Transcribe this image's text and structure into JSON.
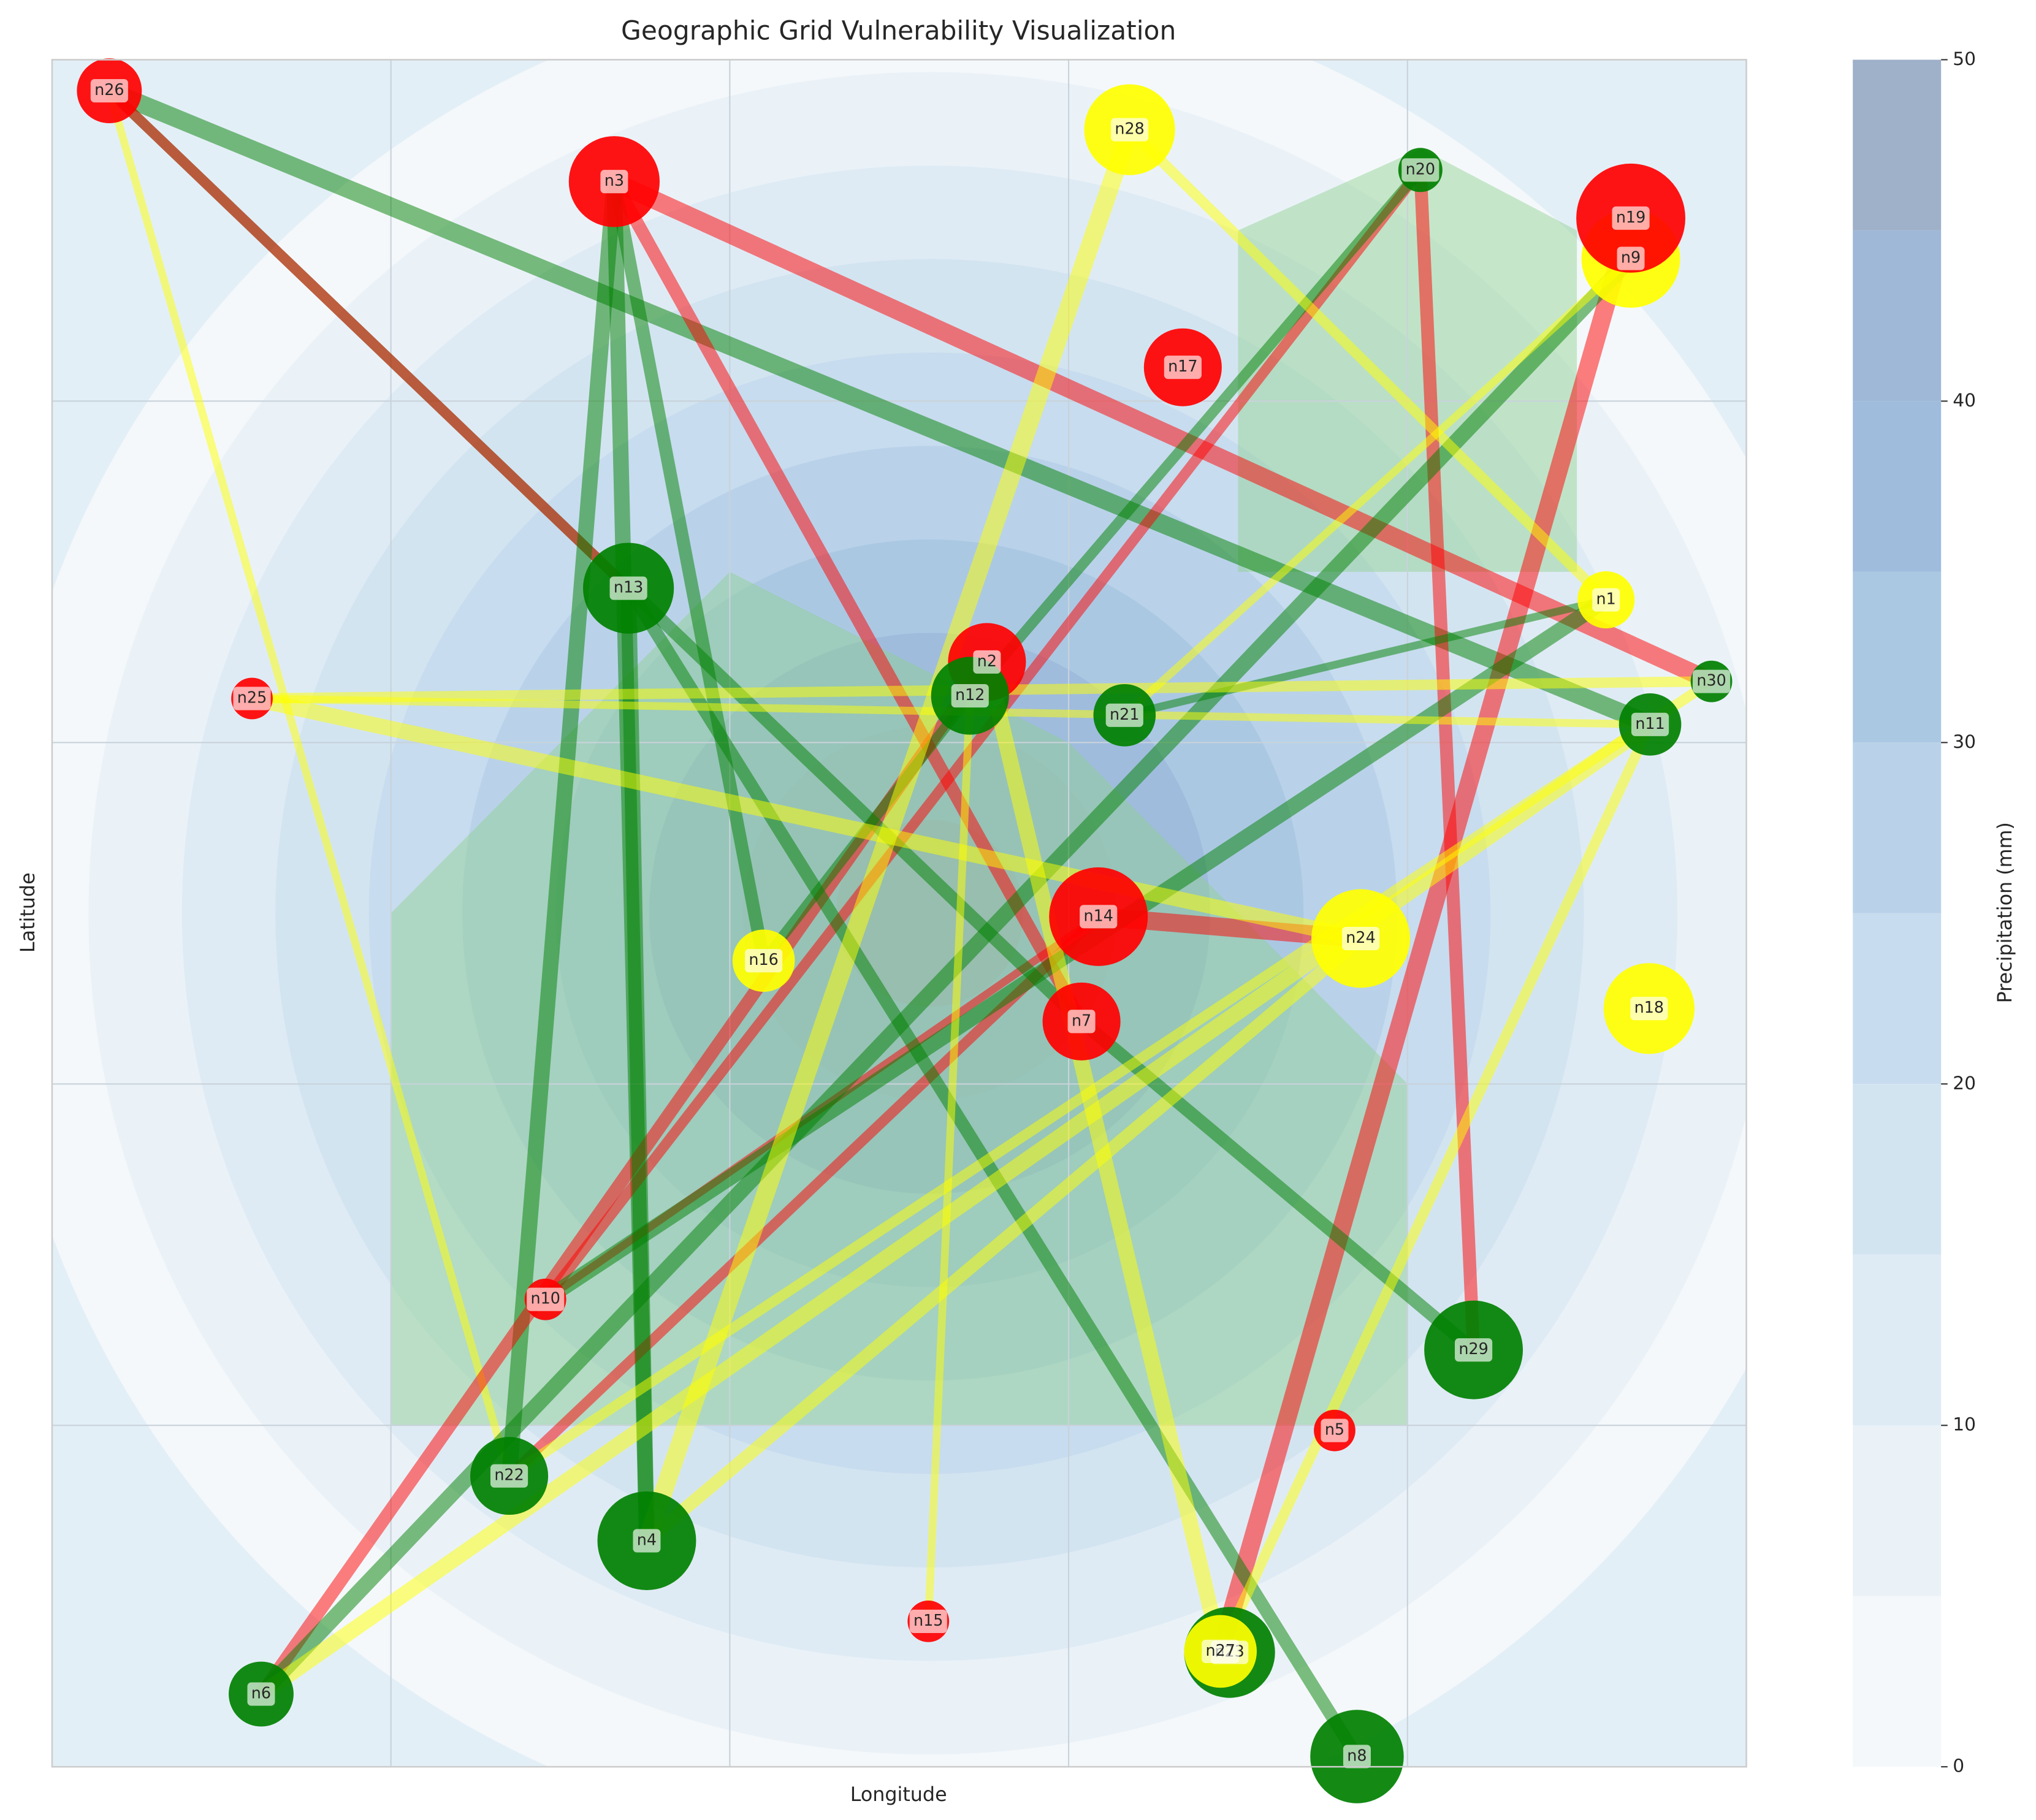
{
  "chart_data": {
    "type": "network",
    "title": "Geographic Grid Vulnerability Visualization",
    "x_label": "Longitude",
    "y_label": "Latitude",
    "xlim": [
      0,
      5
    ],
    "ylim": [
      0,
      5
    ],
    "xticks": [
      1,
      2,
      3,
      4
    ],
    "yticks": [
      1,
      2,
      3,
      4
    ],
    "grid": true,
    "contour_center": [
      2.59,
      2.5
    ],
    "colorbar": {
      "label": "Precipitation (mm)",
      "lim": [
        0,
        50
      ],
      "ticks": [
        0,
        10,
        20,
        30,
        40,
        50
      ],
      "levels": [
        0,
        5,
        10,
        15,
        20,
        25,
        30,
        35,
        40,
        45
      ],
      "colors": [
        "#f4f8fb",
        "#eaf2f8",
        "#dfebf4",
        "#d3e4f1",
        "#c7dcee",
        "#b9d2e9",
        "#abc8e3",
        "#9fbcdd",
        "#9fb8d8",
        "#9fb0c9"
      ]
    },
    "regions": [
      {
        "x": [
          1,
          2,
          3,
          4,
          4,
          1
        ],
        "y": [
          2.5,
          3.5,
          3,
          2,
          1,
          1
        ],
        "color": "#8fd18f"
      },
      {
        "x": [
          3.5,
          4.04,
          4.5,
          4.5,
          3.5
        ],
        "y": [
          4.5,
          4.74,
          4.5,
          3.5,
          3.5
        ],
        "color": "#8fd18f"
      }
    ],
    "nodes": {
      "names": [
        "n1",
        "n2",
        "n3",
        "n4",
        "n5",
        "n6",
        "n7",
        "n8",
        "n9",
        "n10",
        "n11",
        "n12",
        "n13",
        "n14",
        "n15",
        "n16",
        "n17",
        "n18",
        "n19",
        "n20",
        "n21",
        "n22",
        "n23",
        "n24",
        "n25",
        "n26",
        "n27",
        "n28",
        "n29",
        "n30"
      ],
      "x": [
        4.586,
        2.759,
        1.659,
        1.755,
        3.785,
        0.617,
        3.038,
        3.851,
        4.659,
        1.456,
        4.716,
        2.709,
        1.701,
        3.088,
        2.586,
        2.1,
        3.337,
        4.713,
        4.659,
        4.038,
        3.165,
        1.349,
        3.475,
        3.862,
        0.59,
        0.169,
        3.448,
        3.18,
        4.195,
        4.897
      ],
      "y": [
        3.418,
        3.236,
        4.643,
        0.662,
        0.985,
        0.213,
        2.183,
        0.03,
        4.418,
        1.369,
        3.053,
        3.137,
        3.452,
        2.49,
        0.426,
        2.361,
        4.099,
        2.221,
        4.536,
        4.677,
        3.08,
        0.852,
        0.335,
        2.426,
        3.129,
        4.909,
        0.338,
        4.795,
        1.221,
        3.179
      ],
      "sizes": [
        2.2,
        3.0,
        3.5,
        3.8,
        1.6,
        2.5,
        3.0,
        3.6,
        3.8,
        1.6,
        2.4,
        3.0,
        3.5,
        3.8,
        1.6,
        2.4,
        3.0,
        3.5,
        4.2,
        1.7,
        2.4,
        3.0,
        3.5,
        3.8,
        1.6,
        2.5,
        2.8,
        3.5,
        3.8,
        1.6
      ],
      "colors": [
        "#ffff00",
        "#ff0000",
        "#ff0000",
        "#008000",
        "#ff0000",
        "#008000",
        "#ff0000",
        "#008000",
        "#ffff00",
        "#ff0000",
        "#008000",
        "#008000",
        "#008000",
        "#ff0000",
        "#ff0000",
        "#ffff00",
        "#ff0000",
        "#ffff00",
        "#ff0000",
        "#008000",
        "#008000",
        "#008000",
        "#008000",
        "#ffff00",
        "#ff0000",
        "#ff0000",
        "#ffff00",
        "#ffff00",
        "#008000",
        "#008000"
      ]
    },
    "edges": {
      "source": [
        "n26",
        "n26",
        "n26",
        "n26",
        "n3",
        "n3",
        "n3",
        "n3",
        "n3",
        "n20",
        "n20",
        "n20",
        "n19",
        "n14",
        "n6",
        "n22",
        "n10",
        "n13",
        "n13",
        "n13",
        "n7",
        "n9",
        "n1",
        "n21",
        "n16",
        "n28",
        "n28",
        "n25",
        "n25",
        "n25",
        "n2",
        "n15",
        "n6",
        "n22",
        "n4",
        "n9",
        "n27"
      ],
      "target": [
        "n11",
        "n13",
        "n13",
        "n22",
        "n30",
        "n7",
        "n4",
        "n22",
        "n16",
        "n10",
        "n29",
        "n12",
        "n27",
        "n24",
        "n2",
        "n14",
        "n14",
        "n7",
        "n4",
        "n8",
        "n29",
        "n6",
        "n10",
        "n1",
        "n12",
        "n4",
        "n1",
        "n30",
        "n24",
        "n11",
        "n27",
        "n12",
        "n11",
        "n30",
        "n24",
        "n21",
        "n11"
      ],
      "weights": [
        14,
        8,
        8,
        6,
        14,
        10,
        12,
        12,
        10,
        8,
        10,
        8,
        14,
        14,
        10,
        8,
        6,
        10,
        12,
        10,
        10,
        12,
        12,
        6,
        8,
        14,
        8,
        8,
        12,
        6,
        12,
        6,
        12,
        8,
        10,
        6,
        8
      ],
      "colors": [
        "#008000",
        "#008000",
        "#ff0000",
        "#ffff00",
        "#ff0000",
        "#ff0000",
        "#008000",
        "#008000",
        "#008000",
        "#ff0000",
        "#ff0000",
        "#008000",
        "#ff0000",
        "#ff0000",
        "#ff0000",
        "#ff0000",
        "#ff0000",
        "#008000",
        "#008000",
        "#008000",
        "#008000",
        "#008000",
        "#008000",
        "#008000",
        "#008000",
        "#ffff00",
        "#ffff00",
        "#ffff00",
        "#ffff00",
        "#ffff00",
        "#ffff00",
        "#ffff00",
        "#ffff00",
        "#ffff00",
        "#ffff00",
        "#ffff00",
        "#ffff00"
      ]
    }
  }
}
